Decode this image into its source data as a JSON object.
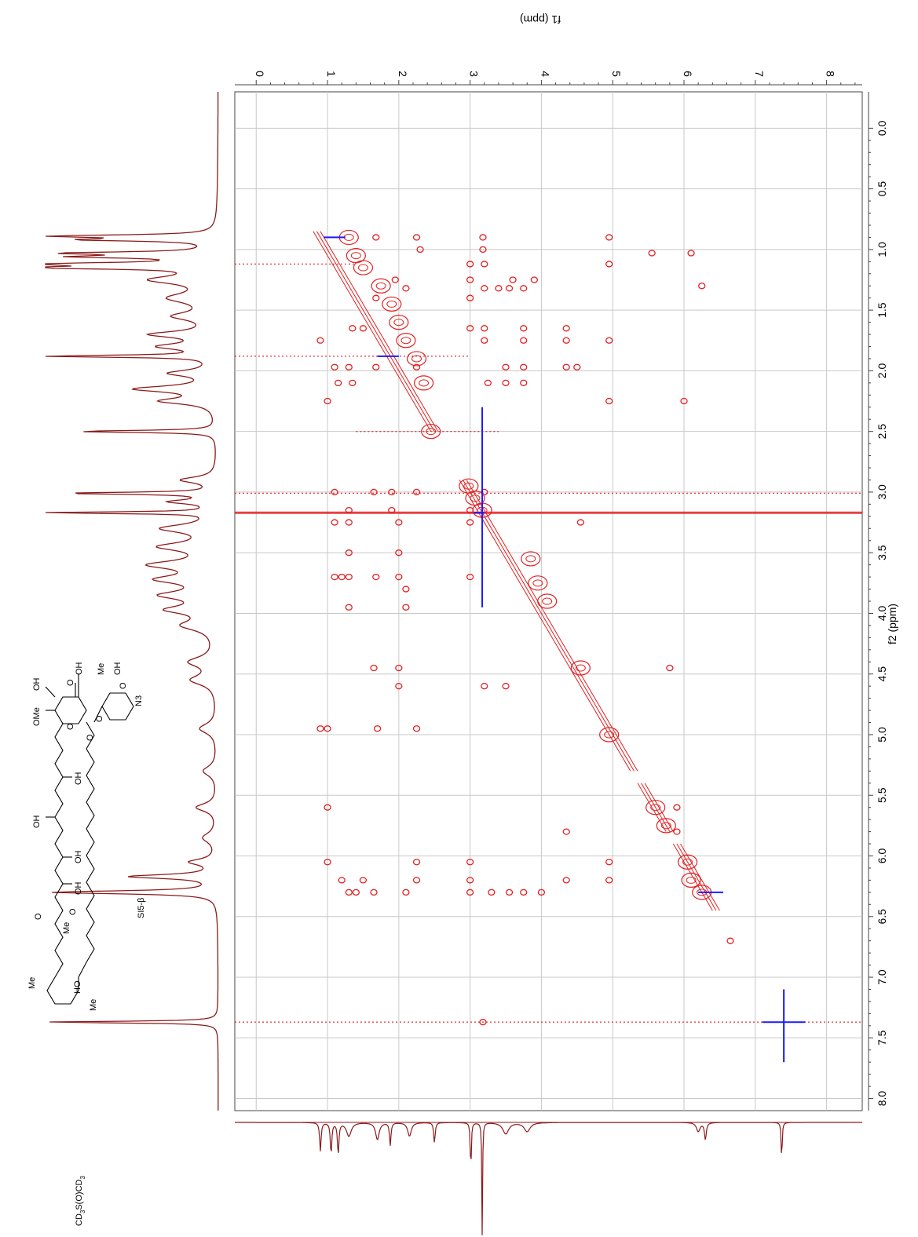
{
  "chart_data": {
    "type": "heatmap",
    "subtype": "2D NMR COSY contour spectrum",
    "f2_axis": {
      "label": "f2 (ppm)",
      "range": [
        8.1,
        -0.3
      ],
      "ticks": [
        0.0,
        0.5,
        1.0,
        1.5,
        2.0,
        2.5,
        3.0,
        3.5,
        4.0,
        4.5,
        5.0,
        5.5,
        6.0,
        6.5,
        7.0,
        7.5,
        8.0
      ],
      "tick_labels": [
        "0.0",
        "0.5",
        "1.0",
        "1.5",
        "2.0",
        "2.5",
        "3.0",
        "3.5",
        "4.0",
        "4.5",
        "5.0",
        "5.5",
        "6.0",
        "6.5",
        "7.0",
        "7.5",
        "8.0"
      ]
    },
    "f1_axis": {
      "label": "f1 (ppm)",
      "range": [
        8.5,
        -0.3
      ],
      "ticks": [
        0,
        1,
        2,
        3,
        4,
        5,
        6,
        7,
        8
      ],
      "tick_labels": [
        "0",
        "1",
        "2",
        "3",
        "4",
        "5",
        "6",
        "7",
        "8"
      ]
    },
    "grid": true,
    "positive_color": "#e32020",
    "negative_color": "#1a1aff",
    "trace_color": "#8b1a1a",
    "diagonal_segments": [
      [
        0.85,
        1.25
      ],
      [
        1.25,
        2.2
      ],
      [
        2.2,
        2.5
      ],
      [
        2.9,
        3.25
      ],
      [
        3.25,
        4.0
      ],
      [
        4.0,
        5.3
      ],
      [
        5.4,
        5.8
      ],
      [
        5.9,
        6.45
      ]
    ],
    "diagonal_blobs": [
      [
        0.9,
        1.3
      ],
      [
        1.05,
        1.4
      ],
      [
        1.15,
        1.5
      ],
      [
        1.3,
        1.75
      ],
      [
        1.45,
        1.9
      ],
      [
        1.6,
        2.0
      ],
      [
        1.75,
        2.1
      ],
      [
        1.9,
        2.25
      ],
      [
        2.1,
        2.35
      ],
      [
        2.5,
        2.45
      ],
      [
        2.95,
        2.98
      ],
      [
        3.05,
        3.07
      ],
      [
        3.15,
        3.17
      ],
      [
        3.55,
        3.85
      ],
      [
        3.75,
        3.95
      ],
      [
        3.9,
        4.08
      ],
      [
        4.45,
        4.55
      ],
      [
        5.0,
        4.95
      ],
      [
        5.6,
        5.6
      ],
      [
        5.75,
        5.75
      ],
      [
        6.05,
        6.05
      ],
      [
        6.2,
        6.1
      ],
      [
        6.3,
        6.25
      ]
    ],
    "streaks": [
      {
        "f2": 1.12,
        "f1_from": -0.3,
        "f1_to": 1.4,
        "color": "red"
      },
      {
        "f2": 1.88,
        "f1_from": -0.3,
        "f1_to": 3.0,
        "color": "red"
      },
      {
        "f2": 2.5,
        "f1_from": 1.4,
        "f1_to": 3.4,
        "color": "red"
      },
      {
        "f2": 3.01,
        "f1_from": -0.3,
        "f1_to": 8.5,
        "color": "red"
      },
      {
        "f2": 3.17,
        "f1_from": -0.3,
        "f1_to": 8.5,
        "color": "red"
      },
      {
        "f2": 7.37,
        "f1_from": -0.3,
        "f1_to": 8.5,
        "color": "red"
      }
    ],
    "cross_peaks": [
      [
        0.9,
        1.68
      ],
      [
        0.9,
        2.25
      ],
      [
        0.9,
        3.18
      ],
      [
        0.9,
        4.95
      ],
      [
        1.0,
        2.3
      ],
      [
        1.0,
        3.18
      ],
      [
        1.03,
        5.55
      ],
      [
        1.03,
        6.1
      ],
      [
        1.12,
        3.0
      ],
      [
        1.12,
        3.2
      ],
      [
        1.12,
        4.95
      ],
      [
        1.25,
        1.95
      ],
      [
        1.25,
        3.0
      ],
      [
        1.25,
        3.6
      ],
      [
        1.25,
        3.9
      ],
      [
        1.3,
        6.25
      ],
      [
        1.32,
        2.1
      ],
      [
        1.32,
        3.2
      ],
      [
        1.32,
        3.4
      ],
      [
        1.32,
        3.55
      ],
      [
        1.32,
        3.75
      ],
      [
        1.4,
        1.68
      ],
      [
        1.4,
        3.0
      ],
      [
        1.65,
        1.35
      ],
      [
        1.65,
        1.5
      ],
      [
        1.65,
        3.0
      ],
      [
        1.65,
        3.2
      ],
      [
        1.65,
        3.75
      ],
      [
        1.65,
        4.35
      ],
      [
        1.75,
        0.9
      ],
      [
        1.75,
        3.2
      ],
      [
        1.75,
        3.75
      ],
      [
        1.75,
        4.35
      ],
      [
        1.75,
        4.95
      ],
      [
        1.97,
        1.1
      ],
      [
        1.97,
        1.3
      ],
      [
        1.97,
        1.68
      ],
      [
        1.97,
        2.25
      ],
      [
        1.97,
        3.5
      ],
      [
        1.97,
        3.75
      ],
      [
        1.97,
        4.35
      ],
      [
        1.97,
        4.5
      ],
      [
        2.1,
        1.15
      ],
      [
        2.1,
        1.35
      ],
      [
        2.1,
        3.25
      ],
      [
        2.1,
        3.5
      ],
      [
        2.1,
        3.75
      ],
      [
        2.25,
        1.0
      ],
      [
        2.25,
        4.95
      ],
      [
        2.25,
        6.0
      ],
      [
        3.0,
        1.1
      ],
      [
        3.0,
        1.65
      ],
      [
        3.0,
        1.9
      ],
      [
        3.0,
        2.25
      ],
      [
        3.0,
        3.2
      ],
      [
        3.15,
        1.3
      ],
      [
        3.15,
        1.9
      ],
      [
        3.15,
        3.0
      ],
      [
        3.25,
        1.1
      ],
      [
        3.25,
        1.3
      ],
      [
        3.25,
        2.0
      ],
      [
        3.25,
        3.0
      ],
      [
        3.25,
        4.55
      ],
      [
        3.5,
        1.3
      ],
      [
        3.5,
        2.0
      ],
      [
        3.7,
        1.1
      ],
      [
        3.7,
        1.2
      ],
      [
        3.7,
        1.3
      ],
      [
        3.7,
        1.68
      ],
      [
        3.7,
        2.0
      ],
      [
        3.7,
        3.0
      ],
      [
        3.8,
        2.1
      ],
      [
        3.95,
        1.3
      ],
      [
        3.95,
        2.1
      ],
      [
        4.45,
        1.65
      ],
      [
        4.45,
        2.0
      ],
      [
        4.45,
        5.8
      ],
      [
        4.6,
        2.0
      ],
      [
        4.6,
        3.2
      ],
      [
        4.6,
        3.5
      ],
      [
        4.95,
        0.9
      ],
      [
        4.95,
        1.0
      ],
      [
        4.95,
        1.7
      ],
      [
        4.95,
        2.25
      ],
      [
        5.6,
        1.0
      ],
      [
        5.6,
        5.9
      ],
      [
        5.8,
        4.35
      ],
      [
        5.8,
        5.9
      ],
      [
        6.05,
        1.0
      ],
      [
        6.05,
        2.25
      ],
      [
        6.05,
        3.0
      ],
      [
        6.05,
        4.95
      ],
      [
        6.2,
        1.2
      ],
      [
        6.2,
        1.5
      ],
      [
        6.2,
        2.25
      ],
      [
        6.2,
        3.0
      ],
      [
        6.2,
        4.35
      ],
      [
        6.2,
        4.95
      ],
      [
        6.3,
        1.3
      ],
      [
        6.3,
        1.4
      ],
      [
        6.3,
        1.65
      ],
      [
        6.3,
        2.1
      ],
      [
        6.3,
        3.0
      ],
      [
        6.3,
        3.3
      ],
      [
        6.3,
        3.55
      ],
      [
        6.3,
        3.75
      ],
      [
        6.3,
        4.0
      ],
      [
        6.7,
        6.65
      ],
      [
        7.37,
        3.18
      ]
    ],
    "negative_marks": [
      {
        "f2": 3.17,
        "f1_from": 3.05,
        "f1_to": 3.2,
        "kind": "vertical"
      },
      {
        "f2_from": 2.3,
        "f2_to": 3.95,
        "f1": 3.17,
        "kind": "horizontal"
      },
      {
        "f2_from": 7.1,
        "f2_to": 7.7,
        "f1": 7.4,
        "kind": "horizontal"
      },
      {
        "f2": 6.3,
        "f1_from": 6.2,
        "f1_to": 6.55,
        "kind": "vertical"
      },
      {
        "f2": 7.37,
        "f1_from": 7.1,
        "f1_to": 7.7,
        "kind": "vertical"
      },
      {
        "f2": 0.9,
        "f1_from": 0.95,
        "f1_to": 1.25,
        "kind": "vertical"
      },
      {
        "f2": 1.88,
        "f1_from": 1.7,
        "f1_to": 2.0,
        "kind": "vertical"
      }
    ],
    "top_trace_peaks": [
      {
        "ppm": 0.89,
        "h": 0.9,
        "w": 0.012
      },
      {
        "ppm": 0.92,
        "h": 0.7,
        "w": 0.012
      },
      {
        "ppm": 1.03,
        "h": 0.8,
        "w": 0.012
      },
      {
        "ppm": 1.06,
        "h": 0.7,
        "w": 0.012
      },
      {
        "ppm": 1.12,
        "h": 1.0,
        "w": 0.012
      },
      {
        "ppm": 1.15,
        "h": 0.95,
        "w": 0.012
      },
      {
        "ppm": 1.25,
        "h": 0.35,
        "w": 0.04
      },
      {
        "ppm": 1.4,
        "h": 0.25,
        "w": 0.05
      },
      {
        "ppm": 1.55,
        "h": 0.22,
        "w": 0.04
      },
      {
        "ppm": 1.7,
        "h": 0.35,
        "w": 0.03
      },
      {
        "ppm": 1.8,
        "h": 0.3,
        "w": 0.03
      },
      {
        "ppm": 1.88,
        "h": 0.95,
        "w": 0.01
      },
      {
        "ppm": 2.02,
        "h": 0.25,
        "w": 0.03
      },
      {
        "ppm": 2.15,
        "h": 0.45,
        "w": 0.03
      },
      {
        "ppm": 2.25,
        "h": 0.3,
        "w": 0.03
      },
      {
        "ppm": 2.5,
        "h": 0.8,
        "w": 0.01
      },
      {
        "ppm": 2.9,
        "h": 0.2,
        "w": 0.03
      },
      {
        "ppm": 3.01,
        "h": 0.85,
        "w": 0.01
      },
      {
        "ppm": 3.08,
        "h": 0.25,
        "w": 0.02
      },
      {
        "ppm": 3.17,
        "h": 1.0,
        "w": 0.008
      },
      {
        "ppm": 3.3,
        "h": 0.3,
        "w": 0.04
      },
      {
        "ppm": 3.45,
        "h": 0.3,
        "w": 0.04
      },
      {
        "ppm": 3.6,
        "h": 0.35,
        "w": 0.04
      },
      {
        "ppm": 3.72,
        "h": 0.3,
        "w": 0.04
      },
      {
        "ppm": 3.85,
        "h": 0.28,
        "w": 0.04
      },
      {
        "ppm": 3.97,
        "h": 0.25,
        "w": 0.04
      },
      {
        "ppm": 4.1,
        "h": 0.18,
        "w": 0.05
      },
      {
        "ppm": 4.4,
        "h": 0.15,
        "w": 0.05
      },
      {
        "ppm": 4.55,
        "h": 0.14,
        "w": 0.05
      },
      {
        "ppm": 4.95,
        "h": 0.1,
        "w": 0.05
      },
      {
        "ppm": 5.3,
        "h": 0.08,
        "w": 0.05
      },
      {
        "ppm": 5.6,
        "h": 0.12,
        "w": 0.04
      },
      {
        "ppm": 5.85,
        "h": 0.08,
        "w": 0.05
      },
      {
        "ppm": 6.05,
        "h": 0.15,
        "w": 0.03
      },
      {
        "ppm": 6.17,
        "h": 0.5,
        "w": 0.02
      },
      {
        "ppm": 6.3,
        "h": 0.95,
        "w": 0.015
      },
      {
        "ppm": 7.37,
        "h": 1.0,
        "w": 0.008
      }
    ],
    "side_trace_peaks": [
      {
        "ppm": 0.9,
        "h": 0.25,
        "w": 0.012
      },
      {
        "ppm": 1.05,
        "h": 0.28,
        "w": 0.012
      },
      {
        "ppm": 1.15,
        "h": 0.28,
        "w": 0.012
      },
      {
        "ppm": 1.3,
        "h": 0.12,
        "w": 0.04
      },
      {
        "ppm": 1.7,
        "h": 0.15,
        "w": 0.03
      },
      {
        "ppm": 1.88,
        "h": 0.2,
        "w": 0.012
      },
      {
        "ppm": 2.15,
        "h": 0.12,
        "w": 0.03
      },
      {
        "ppm": 2.5,
        "h": 0.18,
        "w": 0.012
      },
      {
        "ppm": 3.01,
        "h": 0.45,
        "w": 0.008
      },
      {
        "ppm": 3.17,
        "h": 1.0,
        "w": 0.006
      },
      {
        "ppm": 3.5,
        "h": 0.1,
        "w": 0.05
      },
      {
        "ppm": 3.8,
        "h": 0.08,
        "w": 0.05
      },
      {
        "ppm": 6.2,
        "h": 0.08,
        "w": 0.03
      },
      {
        "ppm": 6.3,
        "h": 0.15,
        "w": 0.015
      },
      {
        "ppm": 7.37,
        "h": 0.35,
        "w": 0.008
      }
    ]
  },
  "compound_label": "SI5-β",
  "solvent_label_parts": [
    "CD",
    "3",
    "S(O)CD",
    "3"
  ],
  "structure_atoms": [
    "OH",
    "OMe",
    "OH",
    "OH",
    "OH",
    "O",
    "O",
    "O",
    "O",
    "OH",
    "OH",
    "Me",
    "Me",
    "Me",
    "HO",
    "OH",
    "Me",
    "N3",
    "O",
    "O",
    "O"
  ]
}
